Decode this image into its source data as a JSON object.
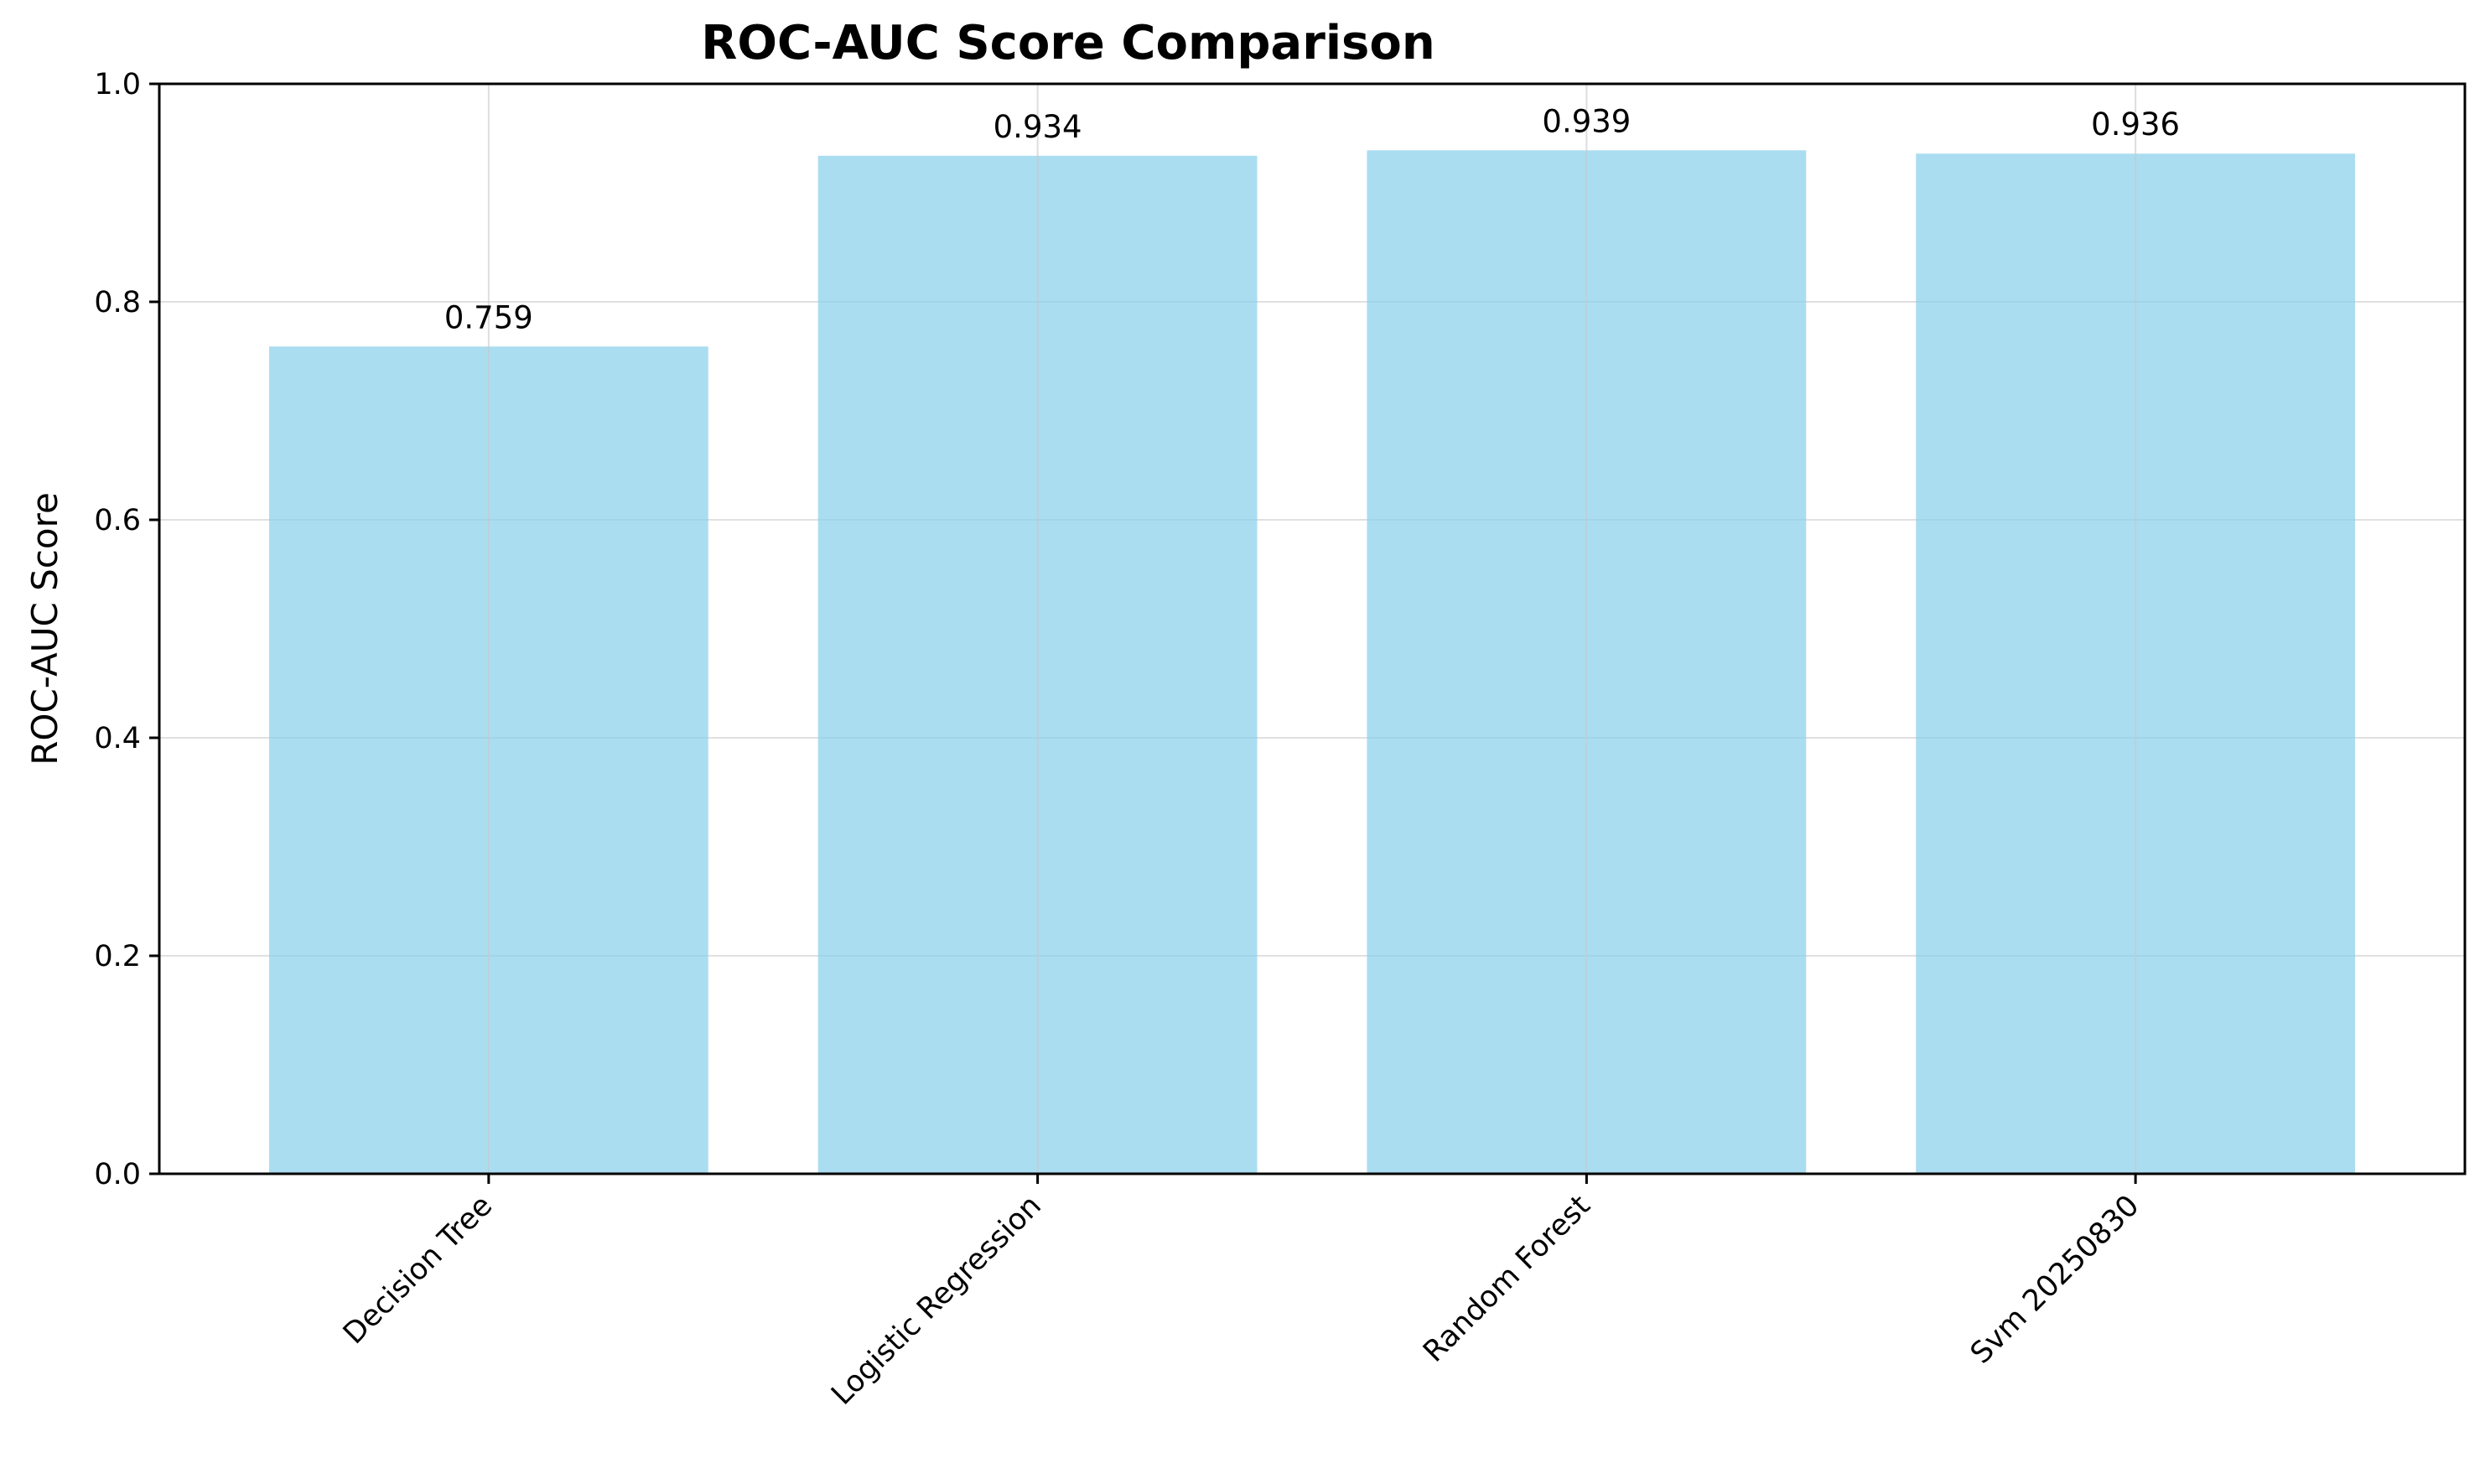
{
  "chart_data": {
    "type": "bar",
    "title": "ROC-AUC Score Comparison",
    "xlabel": "",
    "ylabel": "ROC-AUC Score",
    "categories": [
      "Decision Tree",
      "Logistic Regression",
      "Random Forest",
      "Svm 20250830"
    ],
    "values": [
      0.759,
      0.934,
      0.939,
      0.936
    ],
    "value_labels": [
      "0.759",
      "0.934",
      "0.939",
      "0.936"
    ],
    "ylim": [
      0,
      1.0
    ],
    "yticks": [
      0.0,
      0.2,
      0.4,
      0.6,
      0.8,
      1.0
    ],
    "ytick_labels": [
      "0.0",
      "0.2",
      "0.4",
      "0.6",
      "0.8",
      "1.0"
    ],
    "grid": true,
    "legend": "none",
    "colors": {
      "bar": "#87CEEB",
      "grid": "#e0e0e0",
      "axis": "#000000"
    }
  }
}
